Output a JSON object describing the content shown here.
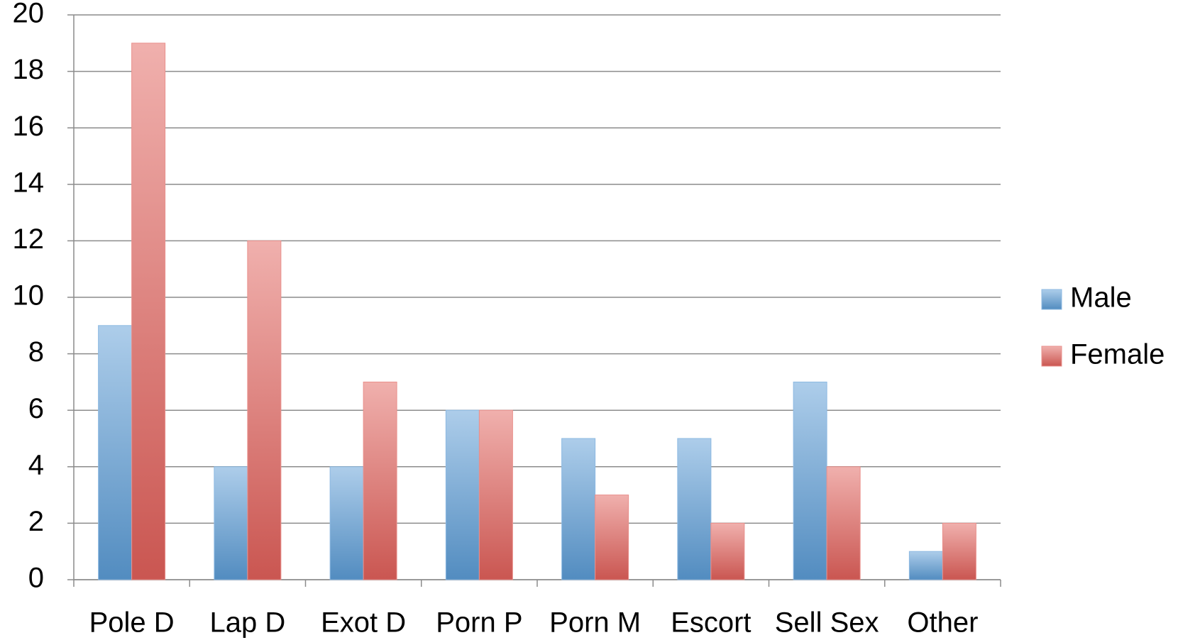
{
  "chart_data": {
    "type": "bar",
    "categories": [
      "Pole D",
      "Lap D",
      "Exot D",
      "Porn P",
      "Porn M",
      "Escort",
      "Sell Sex",
      "Other"
    ],
    "series": [
      {
        "name": "Male",
        "color": "#5b9bd5",
        "values": [
          9,
          4,
          4,
          6,
          5,
          5,
          7,
          1
        ]
      },
      {
        "name": "Female",
        "color": "#e0605a",
        "values": [
          19,
          12,
          7,
          6,
          3,
          2,
          4,
          2
        ]
      }
    ],
    "ylim": [
      0,
      20
    ],
    "yticks": [
      0,
      2,
      4,
      6,
      8,
      10,
      12,
      14,
      16,
      18,
      20
    ],
    "grid": true,
    "legend": "right"
  }
}
